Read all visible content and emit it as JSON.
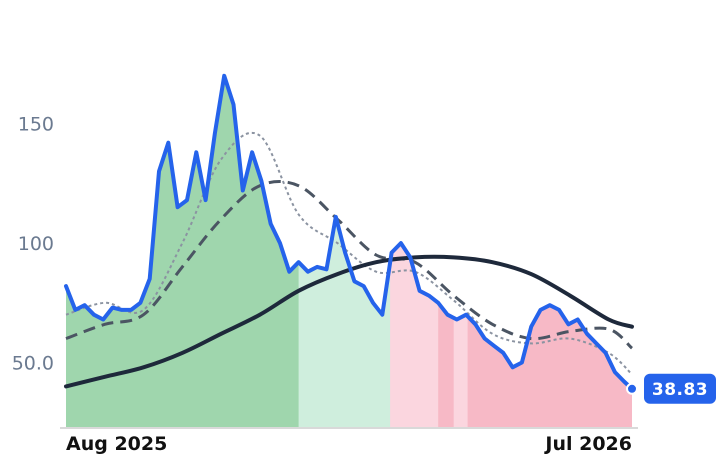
{
  "chart_data": {
    "type": "line",
    "title": "",
    "xlabel": "",
    "ylabel": "",
    "x_range": [
      "2025-07-27",
      "2026-07-27"
    ],
    "x_ticks": [
      {
        "date": "2025-08-01",
        "label": "Aug 2025"
      },
      {
        "date": "2026-07-01",
        "label": "Jul 2026"
      }
    ],
    "y_ticks": [
      {
        "value": 50,
        "label": "50.0"
      },
      {
        "value": 100,
        "label": "100"
      },
      {
        "value": 150,
        "label": "150"
      }
    ],
    "ylim": [
      23,
      185
    ],
    "grid": false,
    "legend": "none",
    "last_value_label": "38.83",
    "colors": {
      "price": "#2563eb",
      "ma_long": "#1e293b",
      "ma_mid": "#4b5563",
      "ma_short": "#8b93a1",
      "zone_green": "#9fd6ad",
      "zone_green_light": "#cfeedd",
      "zone_pink_light": "#fbd6df",
      "zone_pink": "#f7b9c6",
      "badge": "#2563eb",
      "axis": "#d9d9d9"
    },
    "zones": [
      {
        "from": "2025-07-27",
        "to": "2025-12-24",
        "style": "green"
      },
      {
        "from": "2025-12-24",
        "to": "2026-02-21",
        "style": "green_light"
      },
      {
        "from": "2026-02-21",
        "to": "2026-03-24",
        "style": "pink_light"
      },
      {
        "from": "2026-03-24",
        "to": "2026-04-03",
        "style": "pink"
      },
      {
        "from": "2026-04-03",
        "to": "2026-04-12",
        "style": "pink_light"
      },
      {
        "from": "2026-04-12",
        "to": "2026-07-27",
        "style": "pink"
      }
    ],
    "series": [
      {
        "key": "price",
        "x": [
          "2025-07-27",
          "2025-08-02",
          "2025-08-08",
          "2025-08-14",
          "2025-08-20",
          "2025-08-26",
          "2025-09-01",
          "2025-09-07",
          "2025-09-13",
          "2025-09-19",
          "2025-09-25",
          "2025-10-01",
          "2025-10-07",
          "2025-10-13",
          "2025-10-19",
          "2025-10-25",
          "2025-10-31",
          "2025-11-06",
          "2025-11-12",
          "2025-11-18",
          "2025-11-24",
          "2025-11-30",
          "2025-12-06",
          "2025-12-12",
          "2025-12-18",
          "2025-12-24",
          "2025-12-30",
          "2026-01-05",
          "2026-01-11",
          "2026-01-17",
          "2026-01-23",
          "2026-01-29",
          "2026-02-04",
          "2026-02-10",
          "2026-02-16",
          "2026-02-22",
          "2026-02-28",
          "2026-03-06",
          "2026-03-12",
          "2026-03-18",
          "2026-03-24",
          "2026-03-30",
          "2026-04-05",
          "2026-04-11",
          "2026-04-17",
          "2026-04-23",
          "2026-04-29",
          "2026-05-05",
          "2026-05-11",
          "2026-05-17",
          "2026-05-23",
          "2026-05-29",
          "2026-06-04",
          "2026-06-10",
          "2026-06-16",
          "2026-06-22",
          "2026-06-28",
          "2026-07-04",
          "2026-07-10",
          "2026-07-16",
          "2026-07-22",
          "2026-07-27"
        ],
        "values": [
          82,
          72,
          74,
          70,
          68,
          73,
          72,
          72,
          75,
          85,
          130,
          142,
          115,
          118,
          138,
          118,
          146,
          170,
          158,
          122,
          138,
          126,
          108,
          100,
          88,
          92,
          88,
          90,
          89,
          111,
          96,
          84,
          82,
          75,
          70,
          96,
          100,
          94,
          80,
          78,
          75,
          70,
          68,
          70,
          66,
          60,
          57,
          54,
          48,
          50,
          65,
          72,
          74,
          72,
          66,
          68,
          62,
          58,
          54,
          46,
          42,
          39
        ]
      },
      {
        "key": "ma_long",
        "x": [
          "2025-07-27",
          "2025-08-21",
          "2025-09-15",
          "2025-10-10",
          "2025-11-04",
          "2025-11-29",
          "2025-12-24",
          "2026-01-18",
          "2026-02-12",
          "2026-03-09",
          "2026-04-03",
          "2026-04-28",
          "2026-05-23",
          "2026-06-17",
          "2026-07-12",
          "2026-07-27"
        ],
        "values": [
          40,
          44,
          48,
          54,
          62,
          70,
          80,
          87,
          92,
          94,
          94,
          92,
          87,
          78,
          68,
          65
        ]
      },
      {
        "key": "ma_mid",
        "x": [
          "2025-07-27",
          "2025-08-21",
          "2025-09-15",
          "2025-10-10",
          "2025-11-04",
          "2025-11-29",
          "2025-12-24",
          "2026-01-18",
          "2026-02-12",
          "2026-03-09",
          "2026-04-03",
          "2026-04-28",
          "2026-05-23",
          "2026-06-17",
          "2026-07-12",
          "2026-07-27"
        ],
        "values": [
          60,
          66,
          70,
          90,
          110,
          124,
          124,
          110,
          95,
          92,
          78,
          66,
          60,
          63,
          64,
          56
        ]
      },
      {
        "key": "ma_short",
        "x": [
          "2025-07-27",
          "2025-08-21",
          "2025-09-15",
          "2025-10-10",
          "2025-11-04",
          "2025-11-29",
          "2025-12-24",
          "2026-01-18",
          "2026-02-12",
          "2026-03-09",
          "2026-04-03",
          "2026-04-28",
          "2026-05-23",
          "2026-06-17",
          "2026-07-12",
          "2026-07-27"
        ],
        "values": [
          70,
          75,
          72,
          100,
          135,
          145,
          112,
          100,
          88,
          88,
          76,
          62,
          58,
          60,
          54,
          45
        ]
      }
    ]
  }
}
